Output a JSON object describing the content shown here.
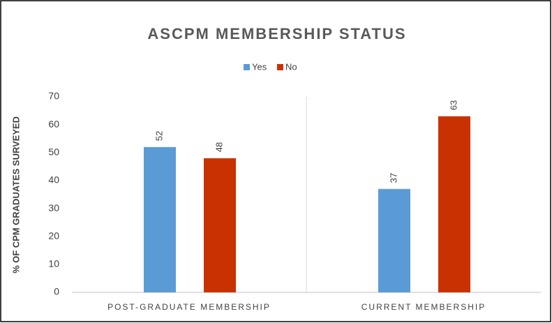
{
  "chart_data": {
    "type": "bar",
    "title": "ASCPM MEMBERSHIP STATUS",
    "y_label": "% OF CPM GRADUATES SURVEYED",
    "categories": [
      "POST-GRADUATE MEMBERSHIP",
      "CURRENT MEMBERSHIP"
    ],
    "series": [
      {
        "name": "Yes",
        "color": "#5b9bd5",
        "values": [
          52,
          37
        ]
      },
      {
        "name": "No",
        "color": "#c93200",
        "values": [
          48,
          63
        ]
      }
    ],
    "ylim": [
      0,
      70
    ],
    "yticks": [
      0,
      10,
      20,
      30,
      40,
      50,
      60,
      70
    ],
    "legend": "top",
    "grid": false
  }
}
